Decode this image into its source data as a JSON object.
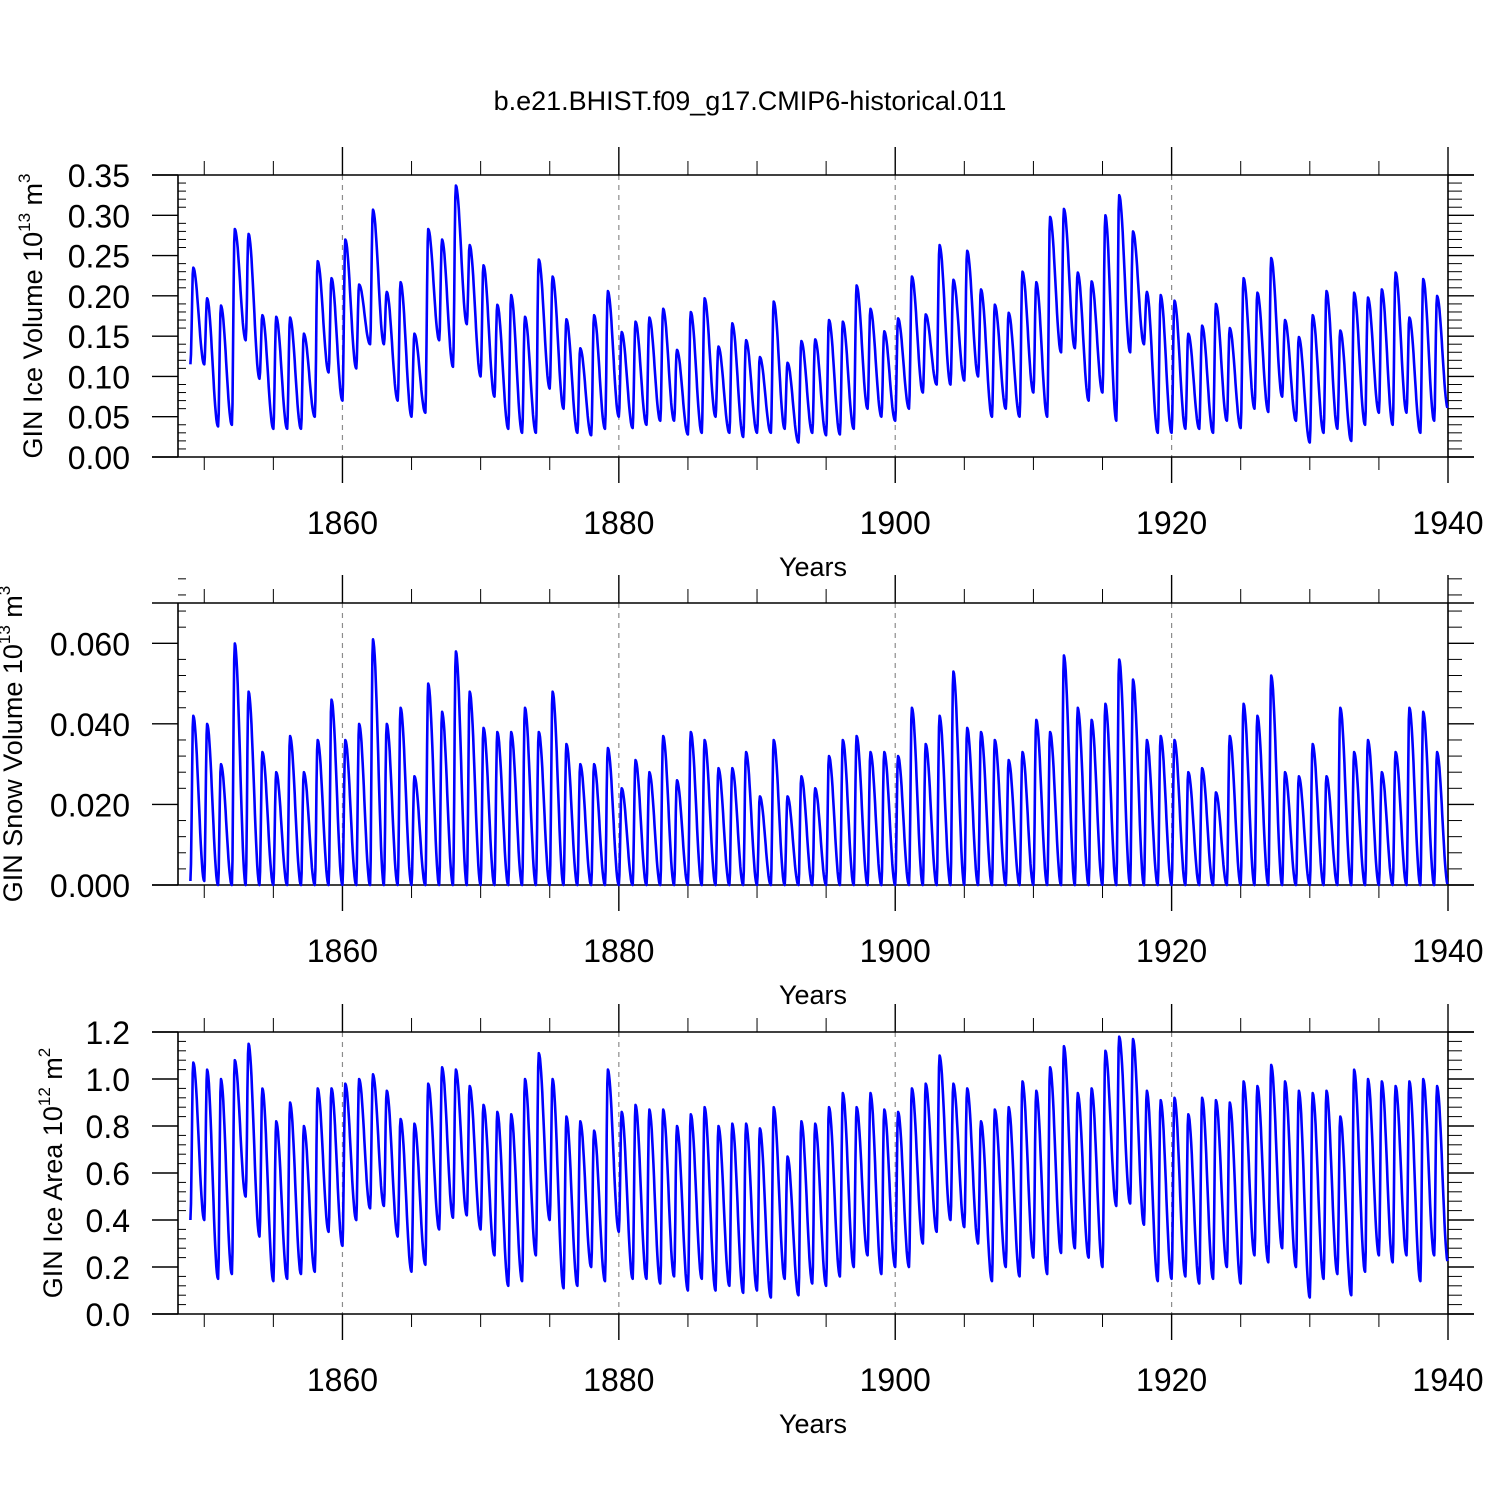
{
  "figure": {
    "title": "b.e21.BHIST.f09_g17.CMIP6-historical.011",
    "line_color": "#0000ff"
  },
  "chart_data": [
    {
      "type": "line",
      "title": "",
      "xlabel": "Years",
      "ylabel_base": "GIN Ice Volume 10",
      "ylabel_exp": "13",
      "ylabel_unit": " m",
      "ylabel_unit_exp": "3",
      "xlim": [
        1848.1,
        1940.0
      ],
      "ylim": [
        0.0,
        0.35
      ],
      "x_ticks": [
        1860,
        1880,
        1900,
        1920,
        1940
      ],
      "x_tick_labels": [
        "1860",
        "1880",
        "1900",
        "1920",
        "1940"
      ],
      "y_ticks": [
        0.0,
        0.05,
        0.1,
        0.15,
        0.2,
        0.25,
        0.3,
        0.35
      ],
      "y_tick_labels": [
        "0.00",
        "0.05",
        "0.10",
        "0.15",
        "0.20",
        "0.25",
        "0.30",
        "0.35"
      ],
      "vertical_gridlines_at": [
        1860,
        1880,
        1900,
        1920
      ],
      "series": [
        {
          "x_start": 1849,
          "peaks": [
            0.235,
            0.197,
            0.188,
            0.283,
            0.277,
            0.176,
            0.174,
            0.173,
            0.153,
            0.243,
            0.222,
            0.27,
            0.214,
            0.307,
            0.205,
            0.217,
            0.153,
            0.283,
            0.27,
            0.337,
            0.263,
            0.238,
            0.189,
            0.201,
            0.174,
            0.245,
            0.224,
            0.171,
            0.135,
            0.176,
            0.206,
            0.155,
            0.168,
            0.173,
            0.184,
            0.133,
            0.18,
            0.197,
            0.137,
            0.166,
            0.145,
            0.124,
            0.193,
            0.117,
            0.144,
            0.146,
            0.17,
            0.168,
            0.213,
            0.184,
            0.156,
            0.172,
            0.224,
            0.177,
            0.263,
            0.22,
            0.256,
            0.208,
            0.189,
            0.179,
            0.23,
            0.217,
            0.298,
            0.308,
            0.229,
            0.218,
            0.3,
            0.325,
            0.28,
            0.205,
            0.201,
            0.194,
            0.153,
            0.163,
            0.19,
            0.16,
            0.222,
            0.204,
            0.247,
            0.17,
            0.149,
            0.176,
            0.206,
            0.157,
            0.204,
            0.198,
            0.208,
            0.229,
            0.173,
            0.221,
            0.2
          ],
          "troughs": [
            0.115,
            0.038,
            0.04,
            0.145,
            0.097,
            0.035,
            0.035,
            0.035,
            0.05,
            0.105,
            0.07,
            0.11,
            0.14,
            0.14,
            0.07,
            0.05,
            0.055,
            0.145,
            0.112,
            0.165,
            0.1,
            0.075,
            0.035,
            0.03,
            0.03,
            0.085,
            0.06,
            0.03,
            0.027,
            0.035,
            0.05,
            0.036,
            0.04,
            0.045,
            0.045,
            0.028,
            0.03,
            0.05,
            0.03,
            0.025,
            0.03,
            0.03,
            0.035,
            0.018,
            0.03,
            0.027,
            0.028,
            0.035,
            0.06,
            0.05,
            0.045,
            0.06,
            0.08,
            0.09,
            0.09,
            0.095,
            0.1,
            0.05,
            0.06,
            0.05,
            0.08,
            0.05,
            0.13,
            0.135,
            0.07,
            0.08,
            0.045,
            0.13,
            0.14,
            0.03,
            0.03,
            0.035,
            0.035,
            0.03,
            0.045,
            0.036,
            0.06,
            0.056,
            0.075,
            0.045,
            0.018,
            0.03,
            0.035,
            0.02,
            0.04,
            0.055,
            0.04,
            0.055,
            0.03,
            0.045,
            0.06
          ]
        }
      ]
    },
    {
      "type": "line",
      "title": "",
      "xlabel": "Years",
      "ylabel_base": "GIN Snow Volume 10",
      "ylabel_exp": "13",
      "ylabel_unit": " m",
      "ylabel_unit_exp": "3",
      "xlim": [
        1848.1,
        1940.0
      ],
      "ylim": [
        0.0,
        0.07
      ],
      "x_ticks": [
        1860,
        1880,
        1900,
        1920,
        1940
      ],
      "x_tick_labels": [
        "1860",
        "1880",
        "1900",
        "1920",
        "1940"
      ],
      "y_ticks": [
        0.0,
        0.02,
        0.04,
        0.06
      ],
      "y_tick_labels": [
        "0.000",
        "0.020",
        "0.040",
        "0.060"
      ],
      "vertical_gridlines_at": [
        1860,
        1880,
        1900,
        1920
      ],
      "series": [
        {
          "x_start": 1849,
          "peaks": [
            0.042,
            0.04,
            0.03,
            0.06,
            0.048,
            0.033,
            0.028,
            0.037,
            0.028,
            0.036,
            0.046,
            0.036,
            0.04,
            0.061,
            0.04,
            0.044,
            0.027,
            0.05,
            0.043,
            0.058,
            0.048,
            0.039,
            0.038,
            0.038,
            0.044,
            0.038,
            0.048,
            0.035,
            0.03,
            0.03,
            0.034,
            0.024,
            0.031,
            0.028,
            0.037,
            0.026,
            0.038,
            0.036,
            0.029,
            0.029,
            0.033,
            0.022,
            0.036,
            0.022,
            0.027,
            0.024,
            0.032,
            0.036,
            0.037,
            0.033,
            0.033,
            0.032,
            0.044,
            0.035,
            0.042,
            0.053,
            0.039,
            0.038,
            0.036,
            0.031,
            0.033,
            0.041,
            0.038,
            0.057,
            0.044,
            0.041,
            0.045,
            0.056,
            0.051,
            0.036,
            0.037,
            0.036,
            0.028,
            0.029,
            0.023,
            0.037,
            0.045,
            0.042,
            0.052,
            0.028,
            0.027,
            0.035,
            0.027,
            0.044,
            0.033,
            0.036,
            0.028,
            0.033,
            0.044,
            0.043,
            0.033
          ],
          "troughs": [
            0.001,
            0.0,
            0.0,
            0.0,
            0.0,
            0.0,
            0.0,
            0.0,
            0.0,
            0.0,
            0.0,
            0.0,
            0.0,
            0.0,
            0.0,
            0.0,
            0.0,
            0.0,
            0.0,
            0.0,
            0.0,
            0.0,
            0.0,
            0.0,
            0.0,
            0.0,
            0.0,
            0.0,
            0.0,
            0.0,
            0.0,
            0.0,
            0.0,
            0.0,
            0.0,
            0.0,
            0.0,
            0.0,
            0.0,
            0.0,
            0.0,
            0.0,
            0.0,
            0.0,
            0.0,
            0.0,
            0.0,
            0.0,
            0.0,
            0.0,
            0.0,
            0.0,
            0.0,
            0.0,
            0.0,
            0.0,
            0.0,
            0.0,
            0.0,
            0.0,
            0.0,
            0.0,
            0.0,
            0.0,
            0.0,
            0.0,
            0.0,
            0.0,
            0.0,
            0.0,
            0.0,
            0.0,
            0.0,
            0.0,
            0.0,
            0.0,
            0.0,
            0.0,
            0.0,
            0.0,
            0.0,
            0.0,
            0.0,
            0.0,
            0.0,
            0.0,
            0.0,
            0.0,
            0.0,
            0.0,
            0.0
          ]
        }
      ]
    },
    {
      "type": "line",
      "title": "",
      "xlabel": "Years",
      "ylabel_base": "GIN Ice Area 10",
      "ylabel_exp": "12",
      "ylabel_unit": " m",
      "ylabel_unit_exp": "2",
      "xlim": [
        1848.1,
        1940.0
      ],
      "ylim": [
        0.0,
        1.2
      ],
      "x_ticks": [
        1860,
        1880,
        1900,
        1920,
        1940
      ],
      "x_tick_labels": [
        "1860",
        "1880",
        "1900",
        "1920",
        "1940"
      ],
      "y_ticks": [
        0.0,
        0.2,
        0.4,
        0.6,
        0.8,
        1.0,
        1.2
      ],
      "y_tick_labels": [
        "0.0",
        "0.2",
        "0.4",
        "0.6",
        "0.8",
        "1.0",
        "1.2"
      ],
      "vertical_gridlines_at": [
        1860,
        1880,
        1900,
        1920
      ],
      "series": [
        {
          "x_start": 1849,
          "peaks": [
            1.07,
            1.04,
            1.0,
            1.08,
            1.15,
            0.96,
            0.82,
            0.9,
            0.8,
            0.96,
            0.96,
            0.98,
            1.0,
            1.02,
            0.95,
            0.83,
            0.81,
            0.98,
            1.05,
            1.04,
            0.97,
            0.89,
            0.86,
            0.85,
            1.0,
            1.11,
            1.0,
            0.84,
            0.82,
            0.78,
            1.04,
            0.86,
            0.89,
            0.87,
            0.87,
            0.8,
            0.85,
            0.88,
            0.8,
            0.81,
            0.81,
            0.79,
            0.88,
            0.67,
            0.82,
            0.81,
            0.88,
            0.94,
            0.88,
            0.94,
            0.87,
            0.86,
            0.96,
            0.98,
            1.1,
            0.98,
            0.96,
            0.82,
            0.87,
            0.88,
            0.99,
            0.95,
            1.05,
            1.14,
            0.94,
            0.96,
            1.12,
            1.18,
            1.17,
            0.95,
            0.91,
            0.92,
            0.85,
            0.92,
            0.91,
            0.9,
            0.99,
            0.97,
            1.06,
            0.99,
            0.95,
            0.94,
            0.95,
            0.84,
            1.04,
            1.0,
            0.99,
            0.97,
            0.99,
            1.0,
            0.97
          ],
          "troughs": [
            0.4,
            0.15,
            0.17,
            0.5,
            0.33,
            0.14,
            0.15,
            0.17,
            0.18,
            0.35,
            0.29,
            0.4,
            0.45,
            0.46,
            0.33,
            0.18,
            0.21,
            0.36,
            0.41,
            0.42,
            0.36,
            0.25,
            0.12,
            0.14,
            0.25,
            0.4,
            0.11,
            0.12,
            0.2,
            0.14,
            0.35,
            0.15,
            0.15,
            0.13,
            0.16,
            0.1,
            0.15,
            0.1,
            0.12,
            0.09,
            0.1,
            0.07,
            0.15,
            0.08,
            0.13,
            0.12,
            0.16,
            0.2,
            0.25,
            0.17,
            0.2,
            0.2,
            0.3,
            0.35,
            0.4,
            0.37,
            0.3,
            0.14,
            0.2,
            0.16,
            0.24,
            0.17,
            0.26,
            0.28,
            0.24,
            0.2,
            0.46,
            0.47,
            0.38,
            0.14,
            0.15,
            0.16,
            0.13,
            0.15,
            0.2,
            0.13,
            0.25,
            0.22,
            0.28,
            0.2,
            0.07,
            0.15,
            0.17,
            0.08,
            0.18,
            0.25,
            0.22,
            0.25,
            0.14,
            0.25,
            0.22
          ]
        }
      ]
    }
  ]
}
